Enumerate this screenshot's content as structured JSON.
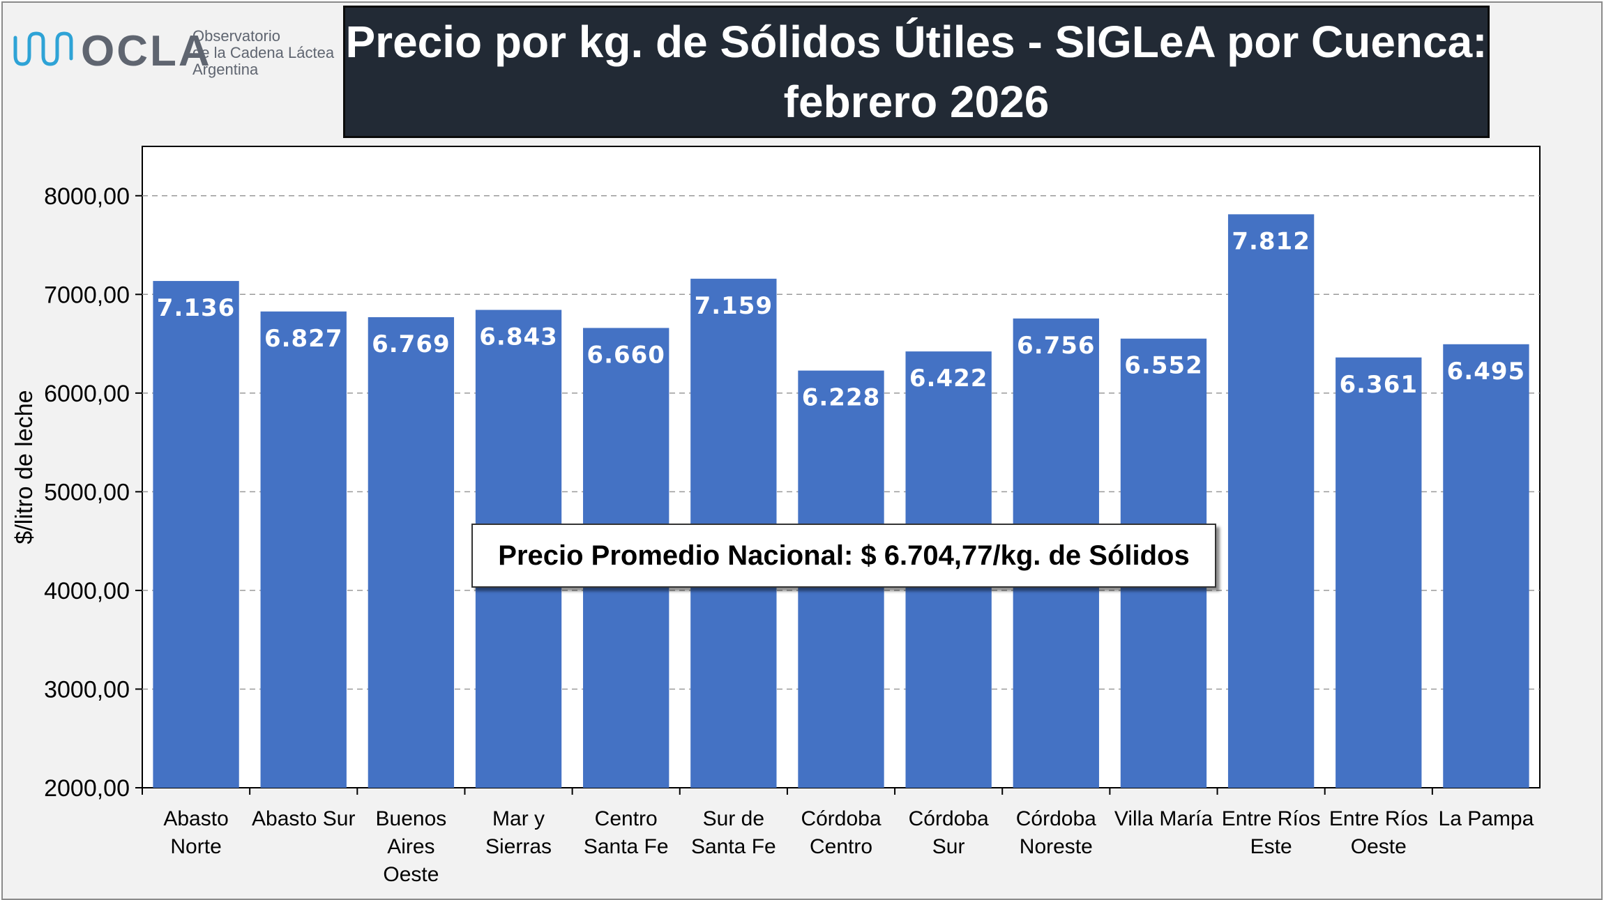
{
  "logo": {
    "wordmark": "OCLA",
    "line1": "Observatorio",
    "line2": "de la Cadena Láctea",
    "line3": "Argentina"
  },
  "title": {
    "line1": "Precio por kg. de Sólidos Útiles - SIGLeA por Cuenca:",
    "line2": "febrero 2026"
  },
  "average_note": "Precio Promedio Nacional: $ 6.704,77/kg.  de Sólidos",
  "colors": {
    "bar": "#4472c4",
    "title_bg": "#222a35",
    "plot_bg": "#ffffff",
    "frame_bg": "#f2f2f2",
    "logo_accent": "#2ea3d6"
  },
  "chart_data": {
    "type": "bar",
    "ylabel": "$/litro de leche",
    "ylim": [
      2000,
      8500
    ],
    "yticks": [
      2000,
      3000,
      4000,
      5000,
      6000,
      7000,
      8000
    ],
    "ytick_labels": [
      "2000,00",
      "3000,00",
      "4000,00",
      "5000,00",
      "6000,00",
      "7000,00",
      "8000,00"
    ],
    "grid": true,
    "categories": [
      [
        "Abasto",
        "Norte"
      ],
      [
        "Abasto Sur"
      ],
      [
        "Buenos",
        "Aires",
        "Oeste"
      ],
      [
        "Mar y",
        "Sierras"
      ],
      [
        "Centro",
        "Santa Fe"
      ],
      [
        "Sur de",
        "Santa Fe"
      ],
      [
        "Córdoba",
        "Centro"
      ],
      [
        "Córdoba",
        "Sur"
      ],
      [
        "Córdoba",
        "Noreste"
      ],
      [
        "Villa María"
      ],
      [
        "Entre Ríos",
        "Este"
      ],
      [
        "Entre Ríos",
        "Oeste"
      ],
      [
        "La Pampa"
      ]
    ],
    "values": [
      7136,
      6827,
      6769,
      6843,
      6660,
      7159,
      6228,
      6422,
      6756,
      6552,
      7812,
      6361,
      6495
    ],
    "data_labels": [
      "7.136",
      "6.827",
      "6.769",
      "6.843",
      "6.660",
      "7.159",
      "6.228",
      "6.422",
      "6.756",
      "6.552",
      "7.812",
      "6.361",
      "6.495"
    ]
  }
}
